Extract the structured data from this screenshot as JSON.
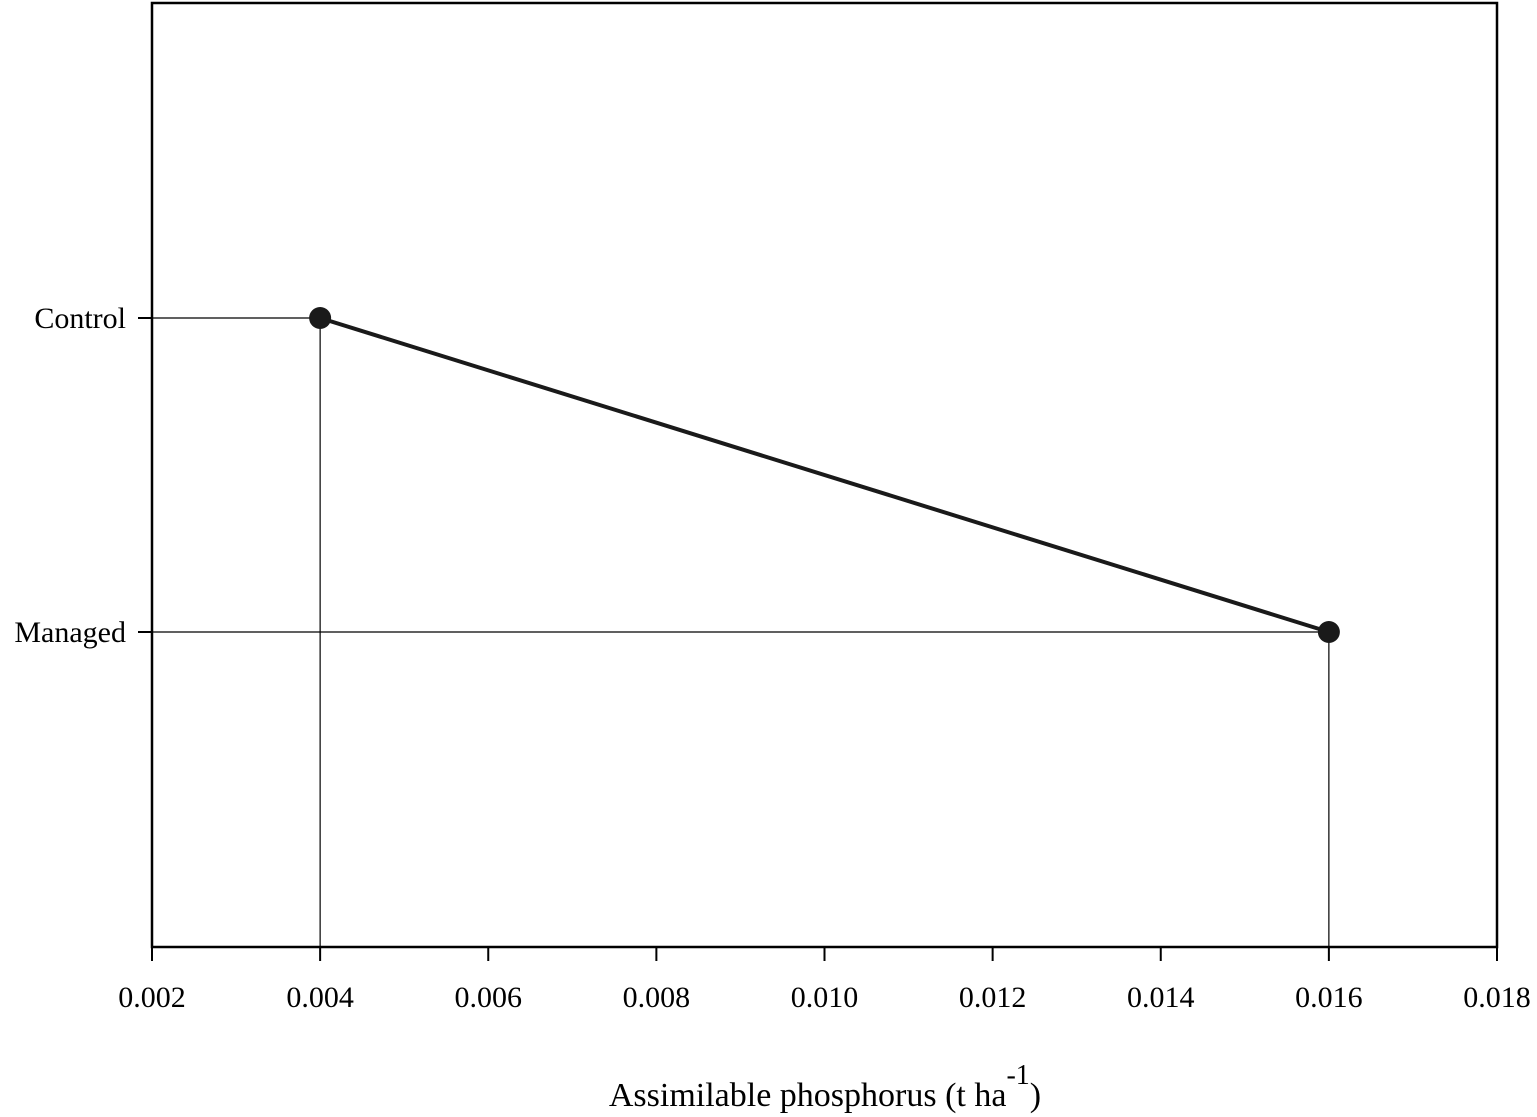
{
  "chart_data": {
    "type": "line",
    "title": "",
    "xlabel_main": "Assimilable phosphorus (t ha",
    "xlabel_sup": "-1",
    "xlabel_close": ")",
    "ylabel": "",
    "xlim": [
      0.002,
      0.018
    ],
    "xticks": [
      "0.002",
      "0.004",
      "0.006",
      "0.008",
      "0.010",
      "0.012",
      "0.014",
      "0.016",
      "0.018"
    ],
    "categories": [
      "Control",
      "Managed"
    ],
    "series": [
      {
        "values": [
          0.004,
          0.016
        ]
      }
    ],
    "drop_lines": true,
    "grid": false,
    "colors": {
      "line": "#1a1a1a",
      "point": "#1a1a1a",
      "axis": "#000000"
    }
  }
}
